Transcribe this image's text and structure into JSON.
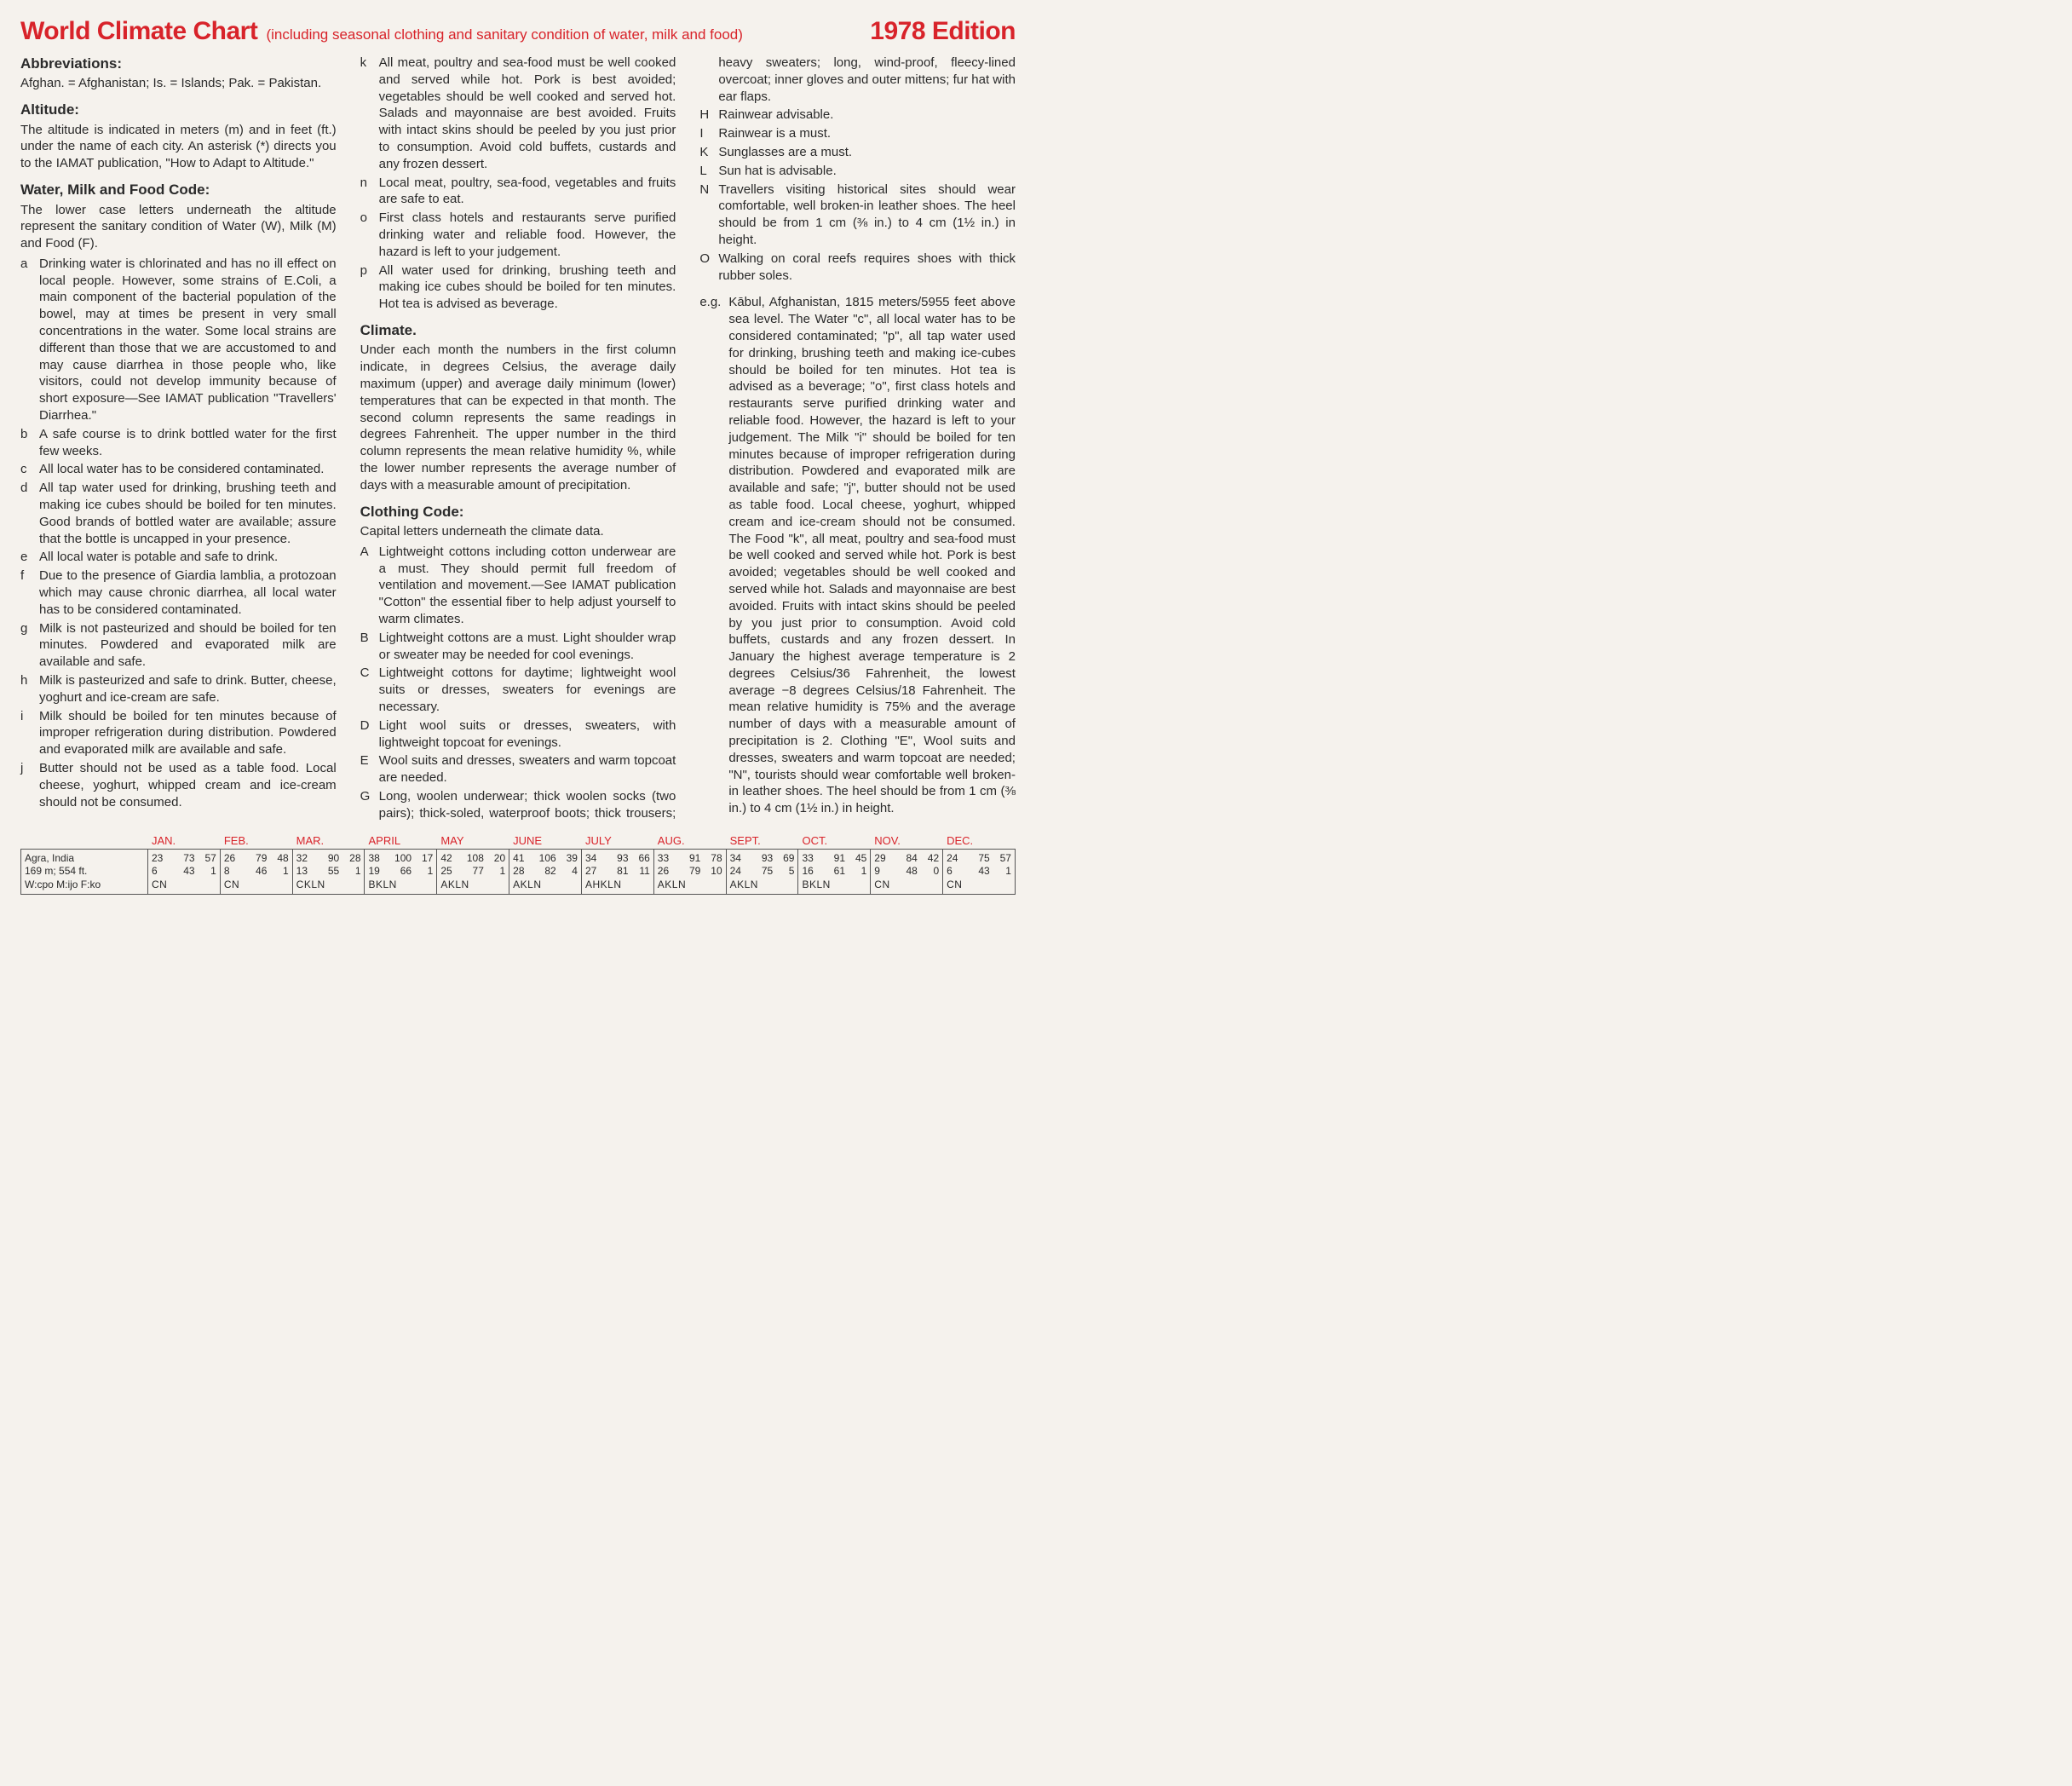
{
  "header": {
    "title": "World Climate Chart",
    "subtitle": "(including seasonal clothing and sanitary condition of water, milk and food)",
    "edition": "1978 Edition"
  },
  "sections": {
    "abbrev_heading": "Abbreviations:",
    "abbrev_text": "Afghan. = Afghanistan; Is. = Islands; Pak. = Pakistan.",
    "altitude_heading": "Altitude:",
    "altitude_text": "The altitude is indicated in meters (m) and in feet (ft.) under the name of each city. An asterisk (*) directs you to the IAMAT publication, \"How to Adapt to Altitude.\"",
    "wmf_heading": "Water, Milk and Food Code:",
    "wmf_intro": "The lower case letters underneath the altitude represent the sanitary condition of Water (W), Milk (M) and Food (F).",
    "climate_heading": "Climate.",
    "climate_text": "Under each month the numbers in the first column indicate, in degrees Celsius, the average daily maximum (upper) and average daily minimum (lower) temperatures that can be expected in that month. The second column represents the same readings in degrees Fahrenheit. The upper number in the third column represents the mean relative humidity %, while the lower number represents the average number of days with a measurable amount of precipitation.",
    "clothing_heading": "Clothing Code:",
    "clothing_intro": "Capital letters underneath the climate data."
  },
  "wmf_codes": [
    {
      "l": "a",
      "t": "Drinking water is chlorinated and has no ill effect on local people. However, some strains of E.Coli, a main component of the bacterial population of the bowel, may at times be present in very small concentrations in the water. Some local strains are different than those that we are accustomed to and may cause diarrhea in those people who, like visitors, could not develop immunity because of short exposure—See IAMAT publication \"Travellers' Diarrhea.\""
    },
    {
      "l": "b",
      "t": "A safe course is to drink bottled water for the first few weeks."
    },
    {
      "l": "c",
      "t": "All local water has to be considered contaminated."
    },
    {
      "l": "d",
      "t": "All tap water used for drinking, brushing teeth and making ice cubes should be boiled for ten minutes. Good brands of bottled water are available; assure that the bottle is uncapped in your presence."
    },
    {
      "l": "e",
      "t": "All local water is potable and safe to drink."
    },
    {
      "l": "f",
      "t": "Due to the presence of Giardia lamblia, a protozoan which may cause chronic diarrhea, all local water has to be considered contaminated."
    },
    {
      "l": "g",
      "t": "Milk is not pasteurized and should be boiled for ten minutes. Powdered and evaporated milk are available and safe."
    },
    {
      "l": "h",
      "t": "Milk is pasteurized and safe to drink. Butter, cheese, yoghurt and ice-cream are safe."
    },
    {
      "l": "i",
      "t": "Milk should be boiled for ten minutes because of improper refrigeration during distribution. Powdered and evaporated milk are available and safe."
    },
    {
      "l": "j",
      "t": "Butter should not be used as a table food. Local cheese, yoghurt, whipped cream and ice-cream should not be consumed."
    },
    {
      "l": "k",
      "t": "All meat, poultry and sea-food must be well cooked and served while hot. Pork is best avoided; vegetables should be well cooked and served hot. Salads and mayonnaise are best avoided. Fruits with intact skins should be peeled by you just prior to consumption. Avoid cold buffets, custards and any frozen dessert."
    },
    {
      "l": "n",
      "t": "Local meat, poultry, sea-food, vegetables and fruits are safe to eat."
    },
    {
      "l": "o",
      "t": "First class hotels and restaurants serve purified drinking water and reliable food. However, the hazard is left to your judgement."
    },
    {
      "l": "p",
      "t": "All water used for drinking, brushing teeth and making ice cubes should be boiled for ten minutes. Hot tea is advised as beverage."
    }
  ],
  "clothing_codes": [
    {
      "l": "A",
      "t": "Lightweight cottons including cotton underwear are a must. They should permit full freedom of ventilation and movement.—See IAMAT publication \"Cotton\" the essential fiber to help adjust yourself to warm climates."
    },
    {
      "l": "B",
      "t": "Lightweight cottons are a must. Light shoulder wrap or sweater may be needed for cool evenings."
    },
    {
      "l": "C",
      "t": "Lightweight cottons for daytime; lightweight wool suits or dresses, sweaters for evenings are necessary."
    },
    {
      "l": "D",
      "t": "Light wool suits or dresses, sweaters, with lightweight topcoat for evenings."
    },
    {
      "l": "E",
      "t": "Wool suits and dresses, sweaters and warm topcoat are needed."
    },
    {
      "l": "G",
      "t": "Long, woolen underwear; thick woolen socks (two pairs); thick-soled, waterproof boots; thick trousers; heavy sweaters; long, wind-proof, fleecy-lined overcoat; inner gloves and outer mittens; fur hat with ear flaps."
    },
    {
      "l": "H",
      "t": "Rainwear advisable."
    },
    {
      "l": "I",
      "t": "Rainwear is a must."
    },
    {
      "l": "K",
      "t": "Sunglasses are a must."
    },
    {
      "l": "L",
      "t": "Sun hat is advisable."
    },
    {
      "l": "N",
      "t": "Travellers visiting historical sites should wear comfortable, well broken-in leather shoes. The heel should be from 1 cm (⅜ in.) to 4 cm (1½ in.) in height."
    },
    {
      "l": "O",
      "t": "Walking on coral reefs requires shoes with thick rubber soles."
    }
  ],
  "example": {
    "l": "e.g.",
    "t": "Kābul, Afghanistan, 1815 meters/5955 feet above sea level. The Water \"c\", all local water has to be considered contaminated; \"p\", all tap water used for drinking, brushing teeth and making ice-cubes should be boiled for ten minutes. Hot tea is advised as a beverage; \"o\", first class hotels and restaurants serve purified drinking water and reliable food. However, the hazard is left to your judgement. The Milk \"i\" should be boiled for ten minutes because of improper refrigeration during distribution. Powdered and evaporated milk are available and safe; \"j\", butter should not be used as table food. Local cheese, yoghurt, whipped cream and ice-cream should not be consumed. The Food \"k\", all meat, poultry and sea-food must be well cooked and served while hot. Pork is best avoided; vegetables should be well cooked and served while hot. Salads and mayonnaise are best avoided. Fruits with intact skins should be peeled by you just prior to consumption. Avoid cold buffets, custards and any frozen dessert. In January the highest average temperature is 2 degrees Celsius/36 Fahrenheit, the lowest average −8 degrees Celsius/18 Fahrenheit. The mean relative humidity is 75% and the average number of days with a measurable amount of precipitation is 2. Clothing \"E\", Wool suits and dresses, sweaters and warm topcoat are needed; \"N\", tourists should wear comfortable well broken-in leather shoes. The heel should be from 1 cm (⅜ in.) to 4 cm (1½ in.) in height."
  },
  "months": [
    "JAN.",
    "FEB.",
    "MAR.",
    "APRIL",
    "MAY",
    "JUNE",
    "JULY",
    "AUG.",
    "SEPT.",
    "OCT.",
    "NOV.",
    "DEC."
  ],
  "city": {
    "name": "Agra, India",
    "alt": "169 m;   554 ft.",
    "codes": "W:cpo  M:ijo  F:ko",
    "data": [
      {
        "r1": [
          "23",
          "73",
          "57"
        ],
        "r2": [
          "6",
          "43",
          "1"
        ],
        "cl": "CN"
      },
      {
        "r1": [
          "26",
          "79",
          "48"
        ],
        "r2": [
          "8",
          "46",
          "1"
        ],
        "cl": "CN"
      },
      {
        "r1": [
          "32",
          "90",
          "28"
        ],
        "r2": [
          "13",
          "55",
          "1"
        ],
        "cl": "CKLN"
      },
      {
        "r1": [
          "38",
          "100",
          "17"
        ],
        "r2": [
          "19",
          "66",
          "1"
        ],
        "cl": "BKLN"
      },
      {
        "r1": [
          "42",
          "108",
          "20"
        ],
        "r2": [
          "25",
          "77",
          "1"
        ],
        "cl": "AKLN"
      },
      {
        "r1": [
          "41",
          "106",
          "39"
        ],
        "r2": [
          "28",
          "82",
          "4"
        ],
        "cl": "AKLN"
      },
      {
        "r1": [
          "34",
          "93",
          "66"
        ],
        "r2": [
          "27",
          "81",
          "11"
        ],
        "cl": "AHKLN"
      },
      {
        "r1": [
          "33",
          "91",
          "78"
        ],
        "r2": [
          "26",
          "79",
          "10"
        ],
        "cl": "AKLN"
      },
      {
        "r1": [
          "34",
          "93",
          "69"
        ],
        "r2": [
          "24",
          "75",
          "5"
        ],
        "cl": "AKLN"
      },
      {
        "r1": [
          "33",
          "91",
          "45"
        ],
        "r2": [
          "16",
          "61",
          "1"
        ],
        "cl": "BKLN"
      },
      {
        "r1": [
          "29",
          "84",
          "42"
        ],
        "r2": [
          "9",
          "48",
          "0"
        ],
        "cl": "CN"
      },
      {
        "r1": [
          "24",
          "75",
          "57"
        ],
        "r2": [
          "6",
          "43",
          "1"
        ],
        "cl": "CN"
      }
    ]
  }
}
